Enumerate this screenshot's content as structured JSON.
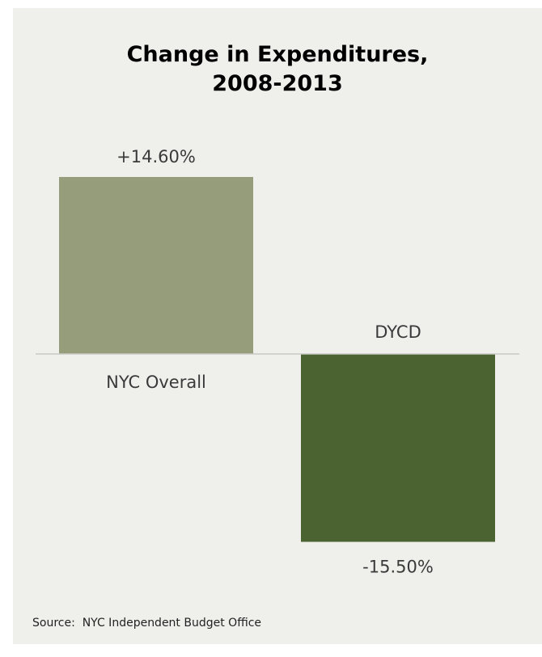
{
  "chart_data": {
    "type": "bar",
    "title_lines": [
      "Change in Expenditures,",
      "2008-2013"
    ],
    "categories": [
      "NYC Overall",
      "DYCD"
    ],
    "values": [
      14.6,
      -15.5
    ],
    "data_labels": [
      "+14.60%",
      "-15.50%"
    ],
    "colors": [
      "#959d7a",
      "#4b6330"
    ],
    "baseline_color": "#c8c9c4",
    "ylim": [
      -16.5,
      16.5
    ],
    "grid": false,
    "legend": "none"
  },
  "source": "Source:  NYC Independent Budget Office"
}
